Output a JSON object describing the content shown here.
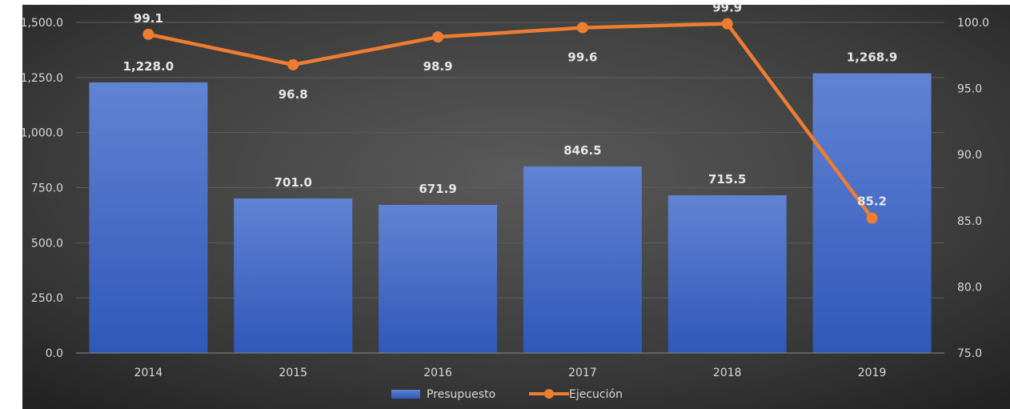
{
  "chart_data": {
    "type": "bar",
    "categories": [
      "2014",
      "2015",
      "2016",
      "2017",
      "2018",
      "2019"
    ],
    "series": [
      {
        "name": "Presupuesto",
        "type": "bar",
        "axis": "left",
        "values": [
          1228.0,
          701.0,
          671.9,
          846.5,
          715.5,
          1268.9
        ],
        "labels": [
          "1,228.0",
          "701.0",
          "671.9",
          "846.5",
          "715.5",
          "1,268.9"
        ],
        "color": "#4472c4"
      },
      {
        "name": "Ejecución",
        "type": "line",
        "axis": "right",
        "values": [
          99.1,
          96.8,
          98.9,
          99.6,
          99.9,
          85.2
        ],
        "labels": [
          "99.1",
          "96.8",
          "98.9",
          "99.6",
          "99.9",
          "85.2"
        ],
        "color": "#ed7d31"
      }
    ],
    "y_left": {
      "ylim": [
        0,
        1500
      ],
      "ticks": [
        0,
        250,
        500,
        750,
        1000,
        1250,
        1500
      ],
      "tick_labels": [
        "0.0",
        "250.0",
        "500.0",
        "750.0",
        "1,000.0",
        "1,250.0",
        "1,500.0"
      ]
    },
    "y_right": {
      "ylim": [
        75,
        100
      ],
      "ticks": [
        75,
        80,
        85,
        90,
        95,
        100
      ],
      "tick_labels": [
        "75.0",
        "80.0",
        "85.0",
        "90.0",
        "95.0",
        "100.0"
      ]
    },
    "grid": true,
    "legend": "bottom",
    "title": "",
    "xlabel": "",
    "ylabel": ""
  }
}
